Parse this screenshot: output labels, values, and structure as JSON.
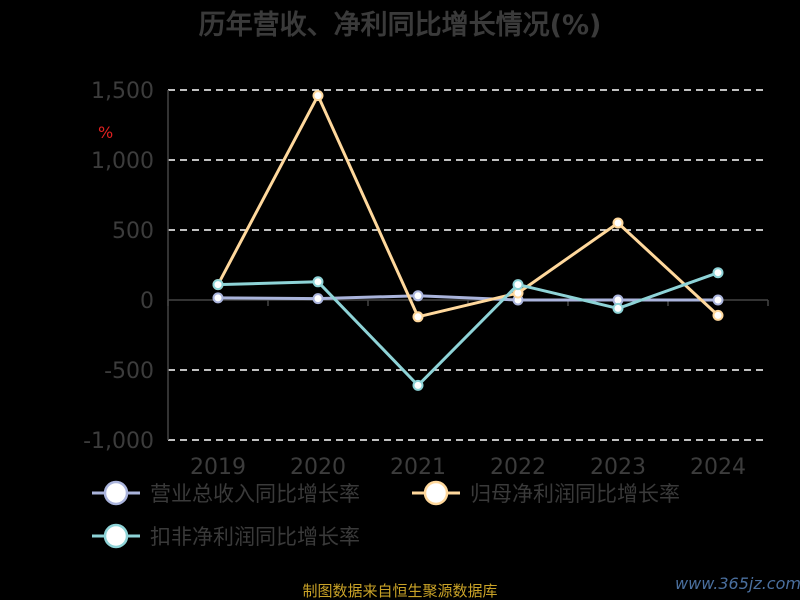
{
  "chart_data": {
    "type": "line",
    "title": "历年营收、净利同比增长情况(%)",
    "unit_mark": "%",
    "categories": [
      "2019",
      "2020",
      "2021",
      "2022",
      "2023",
      "2024"
    ],
    "ylim": [
      -1000,
      1500
    ],
    "yticks": [
      -1000,
      -500,
      0,
      500,
      1000,
      1500
    ],
    "ytick_labels": [
      "-1,000",
      "-500",
      "0",
      "500",
      "1,000",
      "1,500"
    ],
    "grid": true,
    "legend_position": "bottom",
    "series": [
      {
        "name": "营业总收入同比增长率",
        "values": [
          15,
          10,
          30,
          0,
          0,
          0
        ],
        "color": "#aab4dc"
      },
      {
        "name": "归母净利润同比增长率",
        "values": [
          110,
          1460,
          -120,
          50,
          550,
          -110
        ],
        "color": "#ffd89c"
      },
      {
        "name": "扣非净利润同比增长率",
        "values": [
          110,
          130,
          -610,
          110,
          -60,
          195
        ],
        "color": "#8ed3d7"
      }
    ]
  },
  "footer": {
    "source": "制图数据来自恒生聚源数据库",
    "watermark": "www.365jz.com"
  }
}
